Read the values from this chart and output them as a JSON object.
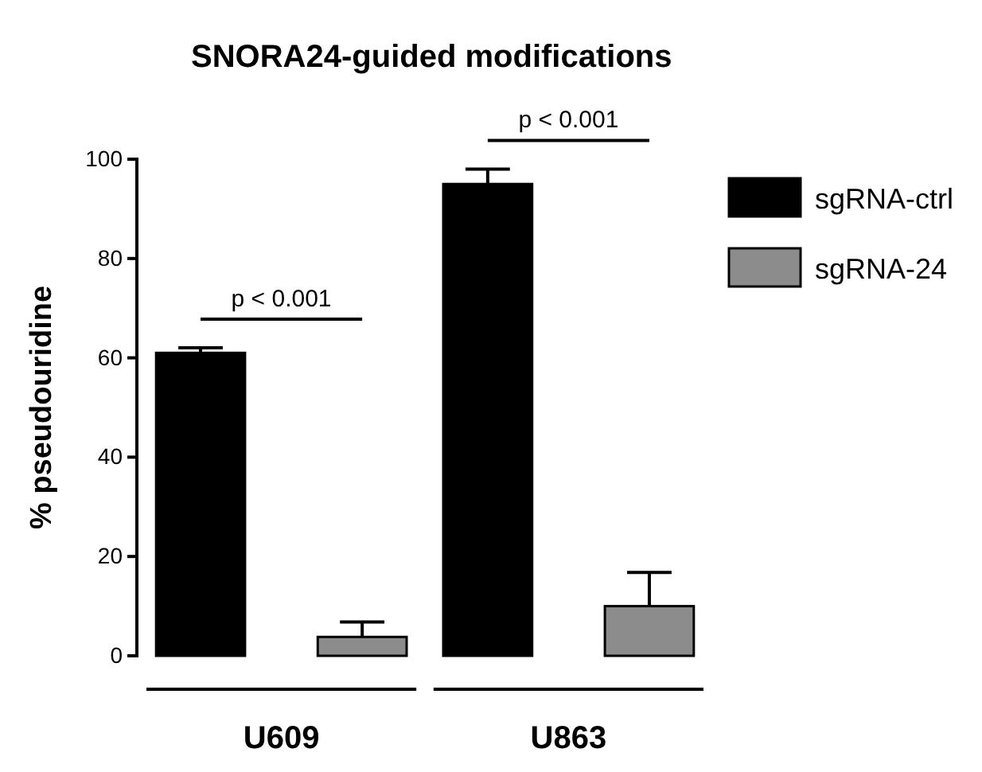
{
  "chart_data": {
    "type": "bar",
    "title": "SNORA24-guided modifications",
    "ylabel": "% pseudouridine",
    "categories": [
      "U609",
      "U863"
    ],
    "series": [
      {
        "name": "sgRNA-ctrl",
        "color": "#000000",
        "values": [
          61,
          95
        ],
        "errors": [
          [
            61,
            62
          ],
          [
            95,
            98
          ]
        ]
      },
      {
        "name": "sgRNA-24",
        "color": "#8c8c8c",
        "values": [
          3.8,
          10
        ],
        "errors": [
          [
            3.8,
            6.8
          ],
          [
            10,
            16.8
          ]
        ]
      }
    ],
    "ylim": [
      0,
      100
    ],
    "yticks": [
      0,
      20,
      40,
      60,
      80,
      100
    ],
    "grid": false,
    "legend": "right",
    "annotations": [
      "p < 0.001",
      "p < 0.001"
    ]
  }
}
